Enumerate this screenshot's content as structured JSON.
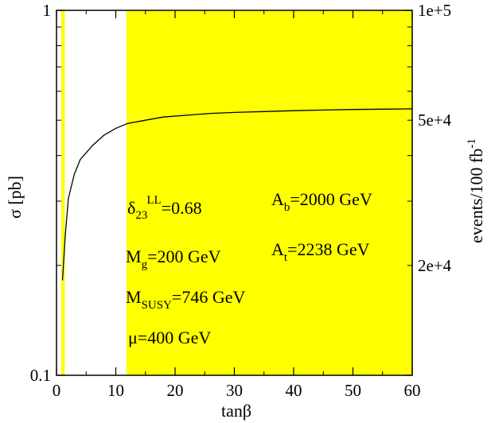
{
  "chart_data": {
    "type": "line",
    "xlabel": "tanβ",
    "ylabel": "σ [pb]",
    "y2label_main": "events/100 fb",
    "y2label_sup": "-1",
    "xlim": [
      0,
      60
    ],
    "ylim": [
      0.1,
      1
    ],
    "yscale": "log",
    "x_ticks": [
      0,
      10,
      20,
      30,
      40,
      50,
      60
    ],
    "x_tick_labels": [
      "0",
      "10",
      "20",
      "30",
      "40",
      "50",
      "60"
    ],
    "y_tick_labels": [
      {
        "value": 1,
        "label": "1"
      },
      {
        "value": 0.1,
        "label": "0.1"
      }
    ],
    "y2_tick_labels": [
      {
        "value": 1,
        "label": "1e+5"
      },
      {
        "value": 0.5,
        "label": "5e+4"
      },
      {
        "value": 0.2,
        "label": "2e+4"
      }
    ],
    "grid": false,
    "highlight_color": "#ffff00",
    "shaded_regions": [
      {
        "x_start": 0.8,
        "x_end": 1.4
      },
      {
        "x_start": 11.8,
        "x_end": 60
      }
    ],
    "series": [
      {
        "x": [
          1,
          1.5,
          2,
          3,
          4,
          6,
          8,
          10,
          12,
          15,
          18,
          22,
          26,
          30,
          35,
          40,
          45,
          50,
          55,
          60
        ],
        "y": [
          0.182,
          0.245,
          0.305,
          0.355,
          0.39,
          0.425,
          0.455,
          0.475,
          0.49,
          0.5,
          0.51,
          0.516,
          0.522,
          0.525,
          0.528,
          0.531,
          0.533,
          0.535,
          0.536,
          0.537
        ]
      }
    ],
    "annotations": {
      "delta": {
        "main": "δ",
        "sub": "23",
        "sup": "LL",
        "value": "=0.68"
      },
      "mg": {
        "main": "M",
        "sub": "g",
        "value": "=200 GeV"
      },
      "msusy": {
        "main": "M",
        "sub": "SUSY",
        "value": "=746 GeV"
      },
      "mu": {
        "text": "μ=400 GeV"
      },
      "ab": {
        "main": "A",
        "sub": "b",
        "value": "=2000 GeV"
      },
      "at": {
        "main": "A",
        "sub": "t",
        "value": "=2238 GeV"
      }
    }
  }
}
